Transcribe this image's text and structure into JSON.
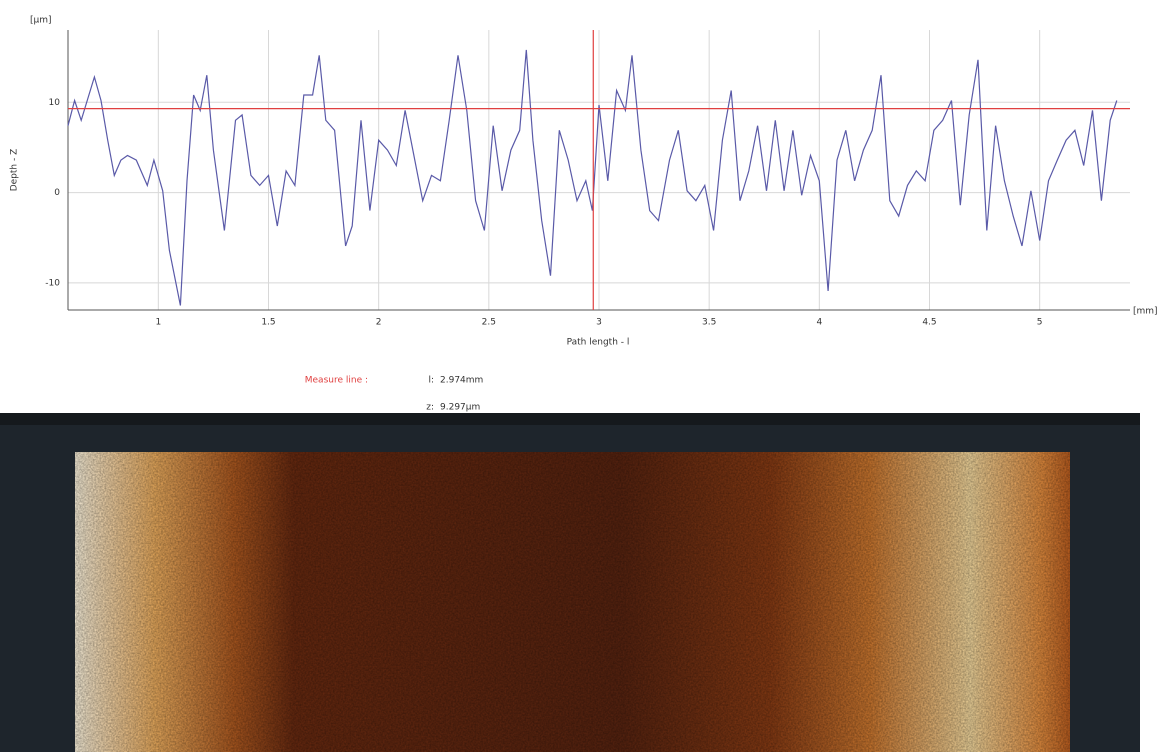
{
  "chart_data": {
    "type": "line",
    "y_label": "Depth - Z",
    "y_unit": "[µm]",
    "x_label": "Path length - l",
    "x_unit": "[mm]",
    "x": [
      0.59,
      0.62,
      0.65,
      0.71,
      0.74,
      0.77,
      0.8,
      0.83,
      0.86,
      0.9,
      0.95,
      0.98,
      1.02,
      1.05,
      1.1,
      1.13,
      1.16,
      1.19,
      1.22,
      1.25,
      1.3,
      1.35,
      1.38,
      1.42,
      1.46,
      1.5,
      1.54,
      1.58,
      1.62,
      1.66,
      1.7,
      1.73,
      1.76,
      1.8,
      1.85,
      1.88,
      1.92,
      1.96,
      2.0,
      2.04,
      2.08,
      2.12,
      2.16,
      2.2,
      2.24,
      2.28,
      2.32,
      2.36,
      2.4,
      2.44,
      2.48,
      2.52,
      2.56,
      2.6,
      2.64,
      2.67,
      2.7,
      2.74,
      2.78,
      2.82,
      2.86,
      2.9,
      2.94,
      2.97,
      3.0,
      3.04,
      3.08,
      3.12,
      3.15,
      3.19,
      3.23,
      3.27,
      3.32,
      3.36,
      3.4,
      3.44,
      3.48,
      3.52,
      3.56,
      3.6,
      3.64,
      3.68,
      3.72,
      3.76,
      3.8,
      3.84,
      3.88,
      3.92,
      3.96,
      4.0,
      4.04,
      4.08,
      4.12,
      4.16,
      4.2,
      4.24,
      4.28,
      4.32,
      4.36,
      4.4,
      4.44,
      4.48,
      4.52,
      4.56,
      4.6,
      4.64,
      4.68,
      4.72,
      4.76,
      4.8,
      4.84,
      4.88,
      4.92,
      4.96,
      5.0,
      5.04,
      5.08,
      5.12,
      5.16,
      5.2,
      5.24,
      5.28,
      5.32,
      5.35
    ],
    "values": [
      7.4,
      10.2,
      8,
      12.8,
      10.2,
      5.8,
      1.9,
      3.6,
      4.1,
      3.6,
      0.8,
      3.6,
      0.2,
      -6.4,
      -12.5,
      1.3,
      10.8,
      9.1,
      13,
      4.7,
      -4.2,
      8,
      8.6,
      1.9,
      0.8,
      1.9,
      -3.7,
      2.4,
      0.8,
      10.8,
      10.8,
      15.2,
      8,
      6.9,
      -5.9,
      -3.7,
      8,
      -2,
      5.8,
      4.7,
      3,
      9.1,
      4.1,
      -0.9,
      1.9,
      1.3,
      8,
      15.2,
      9.1,
      -0.9,
      -4.2,
      7.4,
      0.2,
      4.7,
      6.9,
      15.8,
      5.8,
      -3.1,
      -9.2,
      6.9,
      3.6,
      -0.9,
      1.3,
      -2,
      9.7,
      1.3,
      11.3,
      9.1,
      15.2,
      4.7,
      -2,
      -3.1,
      3.6,
      6.9,
      0.2,
      -0.9,
      0.8,
      -4.2,
      5.8,
      11.3,
      -0.9,
      2.4,
      7.4,
      0.2,
      8,
      0.2,
      6.9,
      -0.3,
      4.1,
      1.3,
      -10.9,
      3.6,
      6.9,
      1.3,
      4.7,
      6.9,
      13,
      -0.9,
      -2.6,
      0.8,
      2.4,
      1.3,
      6.9,
      8,
      10.2,
      -1.4,
      8.6,
      14.7,
      -4.2,
      7.4,
      1.3,
      -2.6,
      -5.9,
      0.2,
      -5.3,
      1.3,
      3.6,
      5.8,
      6.9,
      3,
      9.1,
      -0.9,
      8,
      10.2
    ],
    "color": "#5a5aa8",
    "xlim": [
      0.59,
      5.41
    ],
    "xticks": [
      1,
      1.5,
      2,
      2.5,
      3,
      3.5,
      4,
      4.5,
      5
    ],
    "ylim": [
      -13,
      18
    ],
    "yticks": [
      -10,
      0,
      10
    ],
    "grid": true,
    "measure": {
      "label": "Measure line :",
      "x_name": "l:",
      "x": 2.974,
      "x_label": "2.974mm",
      "y_name": "z:",
      "y": 9.297,
      "y_label": "9.297µm",
      "color": "#e04040"
    }
  }
}
